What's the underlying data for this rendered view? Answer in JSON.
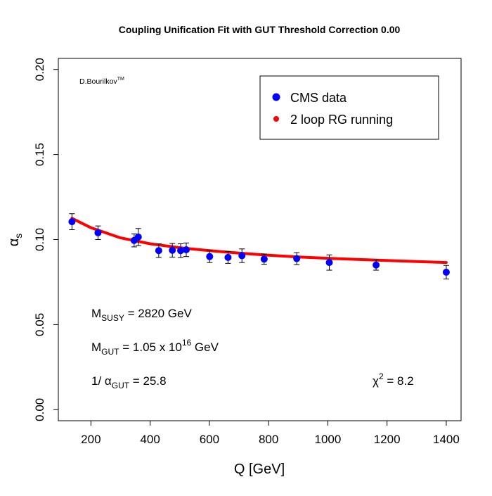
{
  "chart_data": {
    "type": "scatter",
    "title": "Coupling Unification Fit with GUT Threshold Correction 0.00",
    "xlabel": "Q [GeV]",
    "ylabel": "α",
    "ylabel_subscript": "s",
    "xlim": [
      90,
      1450
    ],
    "ylim": [
      -0.0065,
      0.2065
    ],
    "x_ticks": [
      200,
      400,
      600,
      800,
      1000,
      1200,
      1400
    ],
    "x_tick_labels": [
      "200",
      "400",
      "600",
      "800",
      "1000",
      "1200",
      "1400"
    ],
    "y_ticks": [
      0.0,
      0.05,
      0.1,
      0.15,
      0.2
    ],
    "y_tick_labels": [
      "0.00",
      "0.05",
      "0.10",
      "0.15",
      "0.20"
    ],
    "grid": false,
    "legend_position": "top-right",
    "series": [
      {
        "name": "CMS data",
        "kind": "points-with-errorbars",
        "color": "#0000ff",
        "x": [
          136,
          224,
          346,
          360,
          429,
          475,
          503,
          522,
          601,
          663,
          710,
          785,
          895,
          1005,
          1163,
          1400
        ],
        "y": [
          0.1105,
          0.104,
          0.0995,
          0.1015,
          0.0935,
          0.0937,
          0.0935,
          0.094,
          0.09,
          0.0895,
          0.0905,
          0.0885,
          0.0888,
          0.0865,
          0.085,
          0.0808
        ],
        "yerr": [
          0.0047,
          0.004,
          0.0038,
          0.005,
          0.004,
          0.004,
          0.004,
          0.004,
          0.0035,
          0.0035,
          0.004,
          0.003,
          0.0035,
          0.0045,
          0.003,
          0.004
        ]
      },
      {
        "name": "2 loop RG running",
        "kind": "line",
        "color": "#ff0000",
        "x": [
          136,
          200,
          300,
          400,
          500,
          600,
          700,
          800,
          900,
          1000,
          1100,
          1200,
          1300,
          1400
        ],
        "y": [
          0.1125,
          0.107,
          0.101,
          0.0975,
          0.0952,
          0.0935,
          0.092,
          0.0908,
          0.0898,
          0.089,
          0.0883,
          0.0877,
          0.0871,
          0.0865
        ]
      }
    ],
    "annotations": {
      "credit": "D.Bourilkov",
      "credit_sup": "TM",
      "msusy": {
        "prefix": "M",
        "sub": "SUSY",
        "text": " = 2820 GeV"
      },
      "mgut": {
        "prefix": "M",
        "sub": "GUT",
        "text": " = 1.05 x 10",
        "sup": "16",
        "suffix": "  GeV"
      },
      "alpha_gut": {
        "prefix": "1/ α",
        "sub": "GUT",
        "text": " = 25.8"
      },
      "chi2": {
        "prefix": "χ",
        "sup": "2",
        "text": " = 8.2"
      }
    }
  }
}
